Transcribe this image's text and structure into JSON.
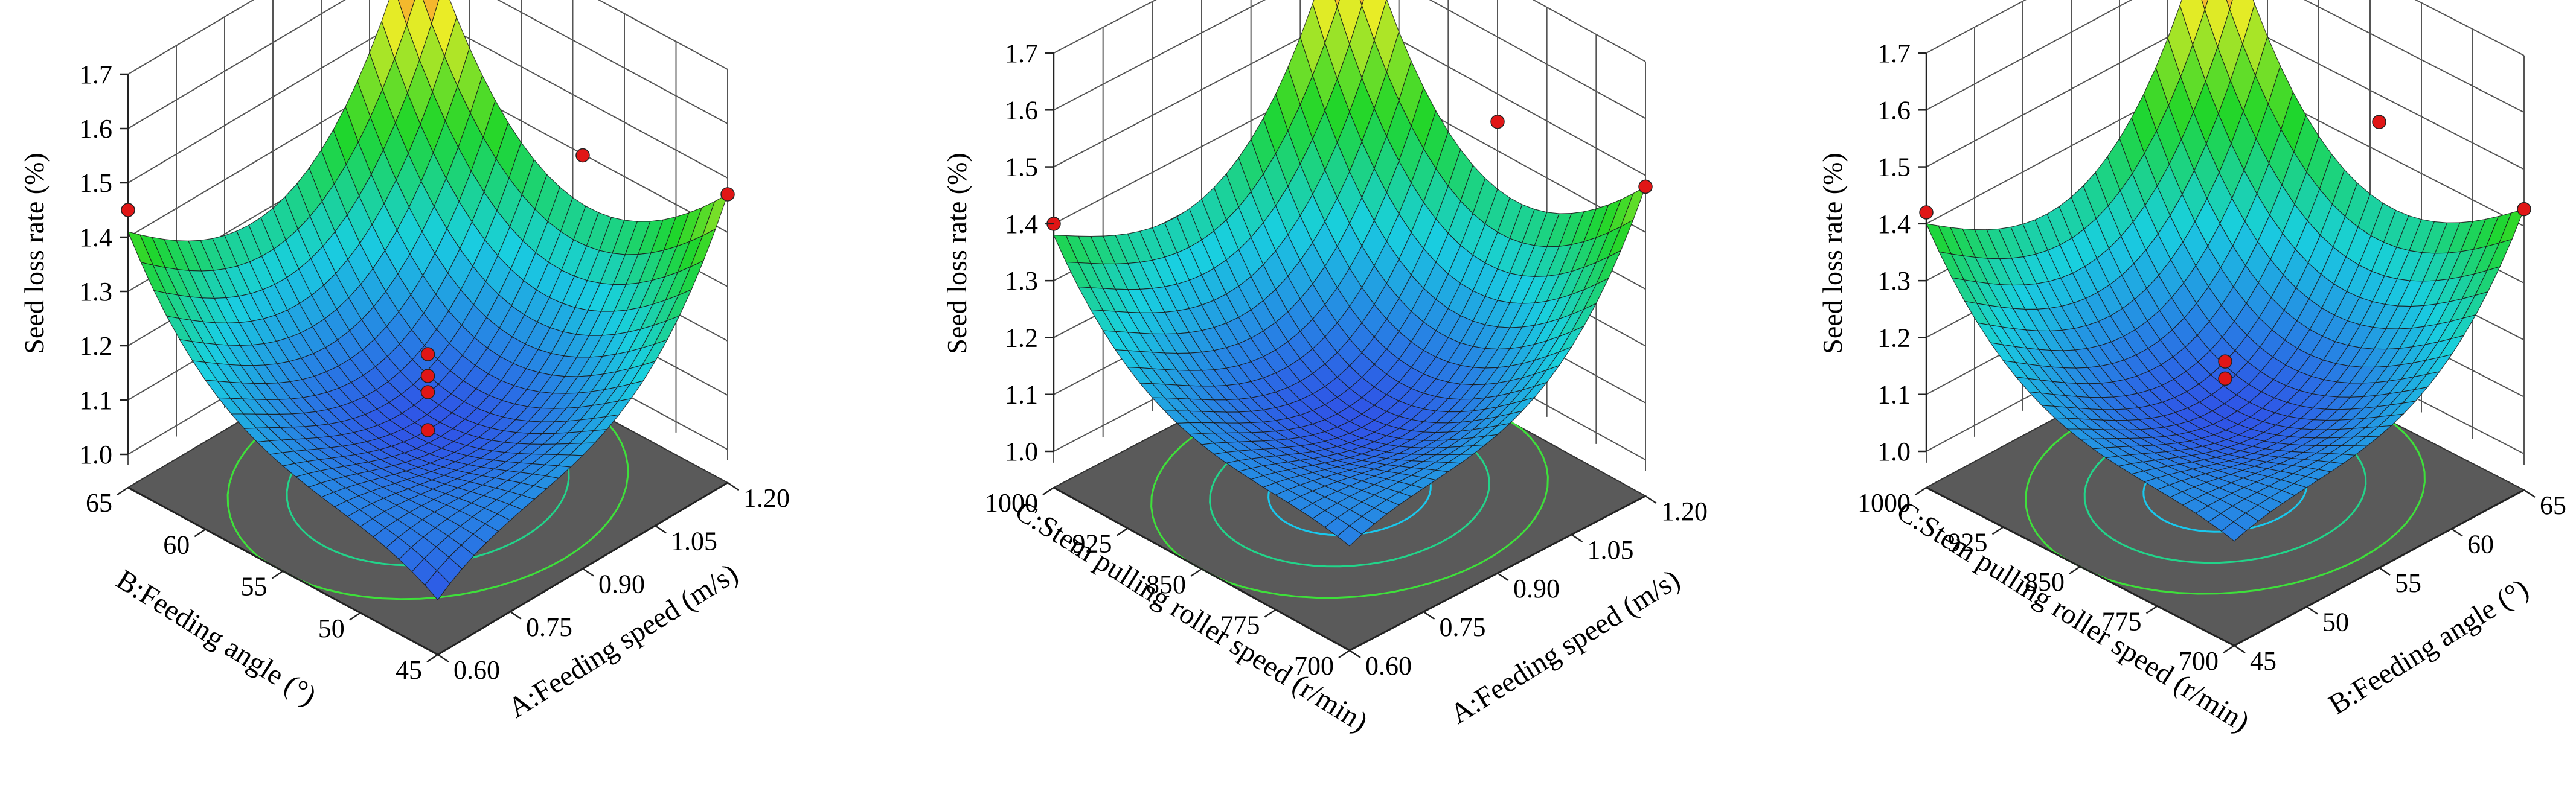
{
  "chart_data": [
    {
      "type": "surface3d",
      "id": "panel-ab",
      "zlabel": "Seed loss rate (%)",
      "xlabel": "A:Feeding speed (m/s)",
      "ylabel": "B:Feeding angle (°)",
      "xticks": [
        "0.60",
        "0.75",
        "0.90",
        "1.05",
        "1.20"
      ],
      "yticks": [
        "45",
        "50",
        "55",
        "60",
        "65"
      ],
      "zticks": [
        "1.0",
        "1.1",
        "1.2",
        "1.3",
        "1.4",
        "1.5",
        "1.6",
        "1.7"
      ],
      "xlim": [
        0.6,
        1.2
      ],
      "ylim": [
        45,
        65
      ],
      "zlim": [
        1.0,
        1.7
      ],
      "surface": {
        "min": 1.04,
        "corners": {
          "xmin_ymin": 1.04,
          "xmax_ymin": 1.47,
          "xmin_ymax": 1.41,
          "xmax_ymax": 1.69
        }
      },
      "points": [
        {
          "x": 0.6,
          "y": 65,
          "z": 1.45
        },
        {
          "x": 0.9,
          "y": 45,
          "z": 1.7
        },
        {
          "x": 1.2,
          "y": 45,
          "z": 1.47
        },
        {
          "x": 0.9,
          "y": 55,
          "z": 1.18
        },
        {
          "x": 0.9,
          "y": 55,
          "z": 1.14
        },
        {
          "x": 0.9,
          "y": 55,
          "z": 1.11
        },
        {
          "x": 0.9,
          "y": 55,
          "z": 1.04
        }
      ]
    },
    {
      "type": "surface3d",
      "id": "panel-ac",
      "zlabel": "Seed loss rate (%)",
      "xlabel": "A:Feeding speed (m/s)",
      "ylabel": "C:Stem pulling roller speed (r/min)",
      "xticks": [
        "0.60",
        "0.75",
        "0.90",
        "1.05",
        "1.20"
      ],
      "yticks": [
        "700",
        "775",
        "850",
        "925",
        "1000"
      ],
      "zticks": [
        "1.0",
        "1.1",
        "1.2",
        "1.3",
        "1.4",
        "1.5",
        "1.6",
        "1.7"
      ],
      "xlim": [
        0.6,
        1.2
      ],
      "ylim": [
        700,
        1000
      ],
      "zlim": [
        1.0,
        1.7
      ],
      "surface": {
        "min": 1.06,
        "corners": {
          "xmin_ymin": 1.12,
          "xmax_ymin": 1.48,
          "xmin_ymax": 1.38,
          "xmax_ymax": 1.73
        }
      },
      "points": [
        {
          "x": 0.6,
          "y": 1000,
          "z": 1.4
        },
        {
          "x": 0.9,
          "y": 700,
          "z": 1.73
        },
        {
          "x": 1.2,
          "y": 700,
          "z": 1.48
        }
      ]
    },
    {
      "type": "surface3d",
      "id": "panel-bc",
      "zlabel": "Seed loss rate (%)",
      "xlabel": "B:Feeding angle (°)",
      "ylabel": "C:Stem pulling roller speed (r/min)",
      "xticks": [
        "45",
        "50",
        "55",
        "60",
        "65"
      ],
      "yticks": [
        "700",
        "775",
        "850",
        "925",
        "1000"
      ],
      "zticks": [
        "1.0",
        "1.1",
        "1.2",
        "1.3",
        "1.4",
        "1.5",
        "1.6",
        "1.7"
      ],
      "xlim": [
        45,
        65
      ],
      "ylim": [
        700,
        1000
      ],
      "zlim": [
        1.0,
        1.7
      ],
      "surface": {
        "min": 1.06,
        "corners": {
          "xmin_ymin": 1.12,
          "xmax_ymin": 1.43,
          "xmin_ymax": 1.4,
          "xmax_ymax": 1.72
        }
      },
      "points": [
        {
          "x": 45,
          "y": 1000,
          "z": 1.42
        },
        {
          "x": 55,
          "y": 700,
          "z": 1.72
        },
        {
          "x": 65,
          "y": 700,
          "z": 1.43
        },
        {
          "x": 55,
          "y": 850,
          "z": 1.16
        },
        {
          "x": 55,
          "y": 850,
          "z": 1.13
        }
      ]
    }
  ],
  "colors": {
    "surface_low": "#2f55e6",
    "surface_mid1": "#19cfe0",
    "surface_mid2": "#1fd62a",
    "surface_high1": "#ecec26",
    "surface_high2": "#ff7a36",
    "floor": "#5a5a5a",
    "contour_low": "#19c8ee",
    "contour_mid": "#22d48a",
    "contour_high": "#3ee03a",
    "point_fill": "#e01616",
    "point_pale": "#f3b0b0"
  }
}
